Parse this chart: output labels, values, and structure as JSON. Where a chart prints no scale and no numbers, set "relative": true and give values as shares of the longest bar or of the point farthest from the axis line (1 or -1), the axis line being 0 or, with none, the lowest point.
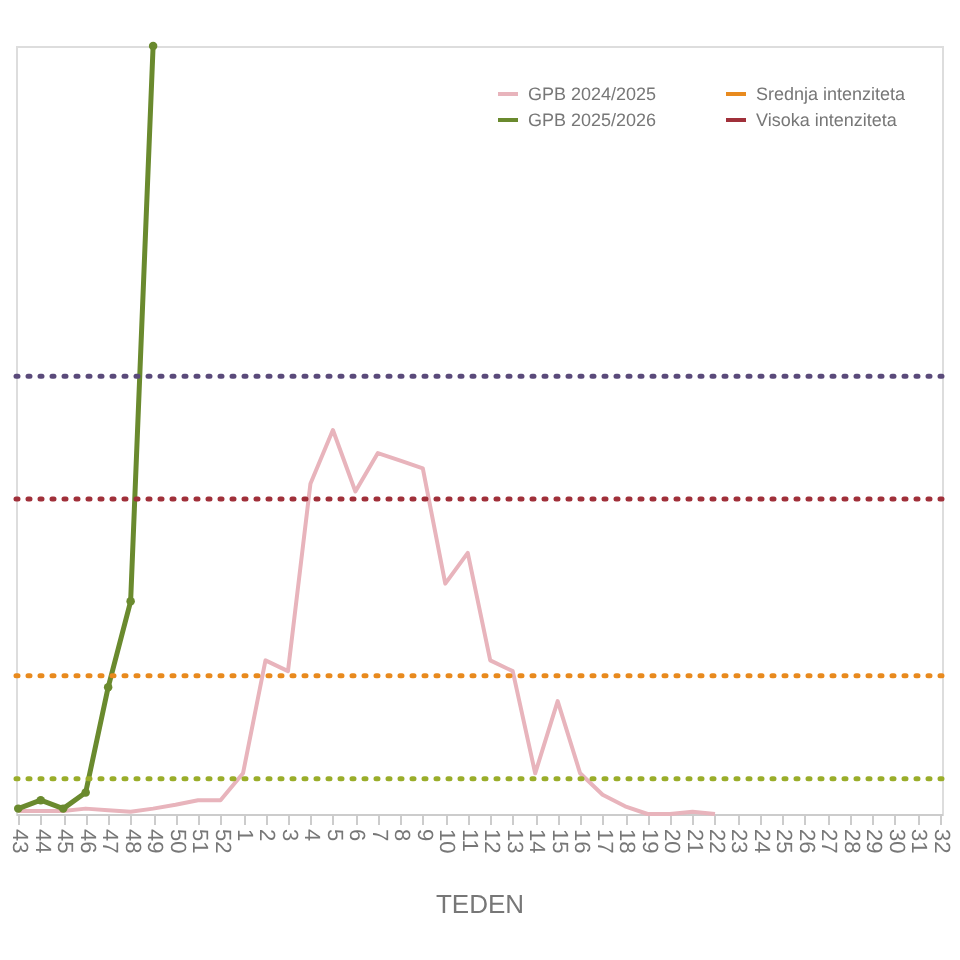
{
  "chart_data": {
    "type": "line",
    "relative": true,
    "xlabel": "TEDEN",
    "categories": [
      "43",
      "44",
      "45",
      "46",
      "47",
      "48",
      "49",
      "50",
      "51",
      "52",
      "1",
      "2",
      "3",
      "4",
      "5",
      "6",
      "7",
      "8",
      "9",
      "10",
      "11",
      "12",
      "13",
      "14",
      "15",
      "16",
      "17",
      "18",
      "19",
      "20",
      "21",
      "22",
      "23",
      "24",
      "25",
      "26",
      "27",
      "28",
      "29",
      "30",
      "31",
      "32"
    ],
    "series": [
      {
        "name": "GPB 2024/2025",
        "color": "#e8b4bc",
        "marker": "none",
        "values": [
          0.004,
          0.004,
          0.004,
          0.007,
          0.005,
          0.003,
          0.007,
          0.012,
          0.018,
          0.018,
          0.053,
          0.2,
          0.186,
          0.43,
          0.5,
          0.42,
          0.47,
          0.46,
          0.45,
          0.3,
          0.34,
          0.2,
          0.186,
          0.053,
          0.147,
          0.053,
          0.025,
          0.01,
          0.0,
          0.0,
          0.003,
          0.0,
          null,
          null,
          null,
          null,
          null,
          null,
          null,
          null,
          null,
          null
        ]
      },
      {
        "name": "GPB 2025/2026",
        "color": "#6a8a2e",
        "marker": "circle",
        "values": [
          0.007,
          0.018,
          0.007,
          0.028,
          0.165,
          0.277,
          1,
          null,
          null,
          null,
          null,
          null,
          null,
          null,
          null,
          null,
          null,
          null,
          null,
          null,
          null,
          null,
          null,
          null,
          null,
          null,
          null,
          null,
          null,
          null,
          null,
          null,
          null,
          null,
          null,
          null,
          null,
          null,
          null,
          null,
          null,
          null
        ]
      }
    ],
    "ref_lines": [
      {
        "axis": "y",
        "value": 0.046,
        "color": "#9aad2a",
        "line_style": "dotted"
      },
      {
        "axis": "y",
        "value": 0.18,
        "label": "Srednja intenziteta",
        "color": "#e88a1e",
        "line_style": "dotted"
      },
      {
        "axis": "y",
        "value": 0.41,
        "label": "Visoka intenziteta",
        "color": "#a0303a",
        "line_style": "dotted"
      },
      {
        "axis": "y",
        "value": 0.57,
        "color": "#5a4a7a",
        "line_style": "dotted"
      }
    ],
    "grid": false,
    "legend": "top right",
    "line_style": "solid"
  }
}
